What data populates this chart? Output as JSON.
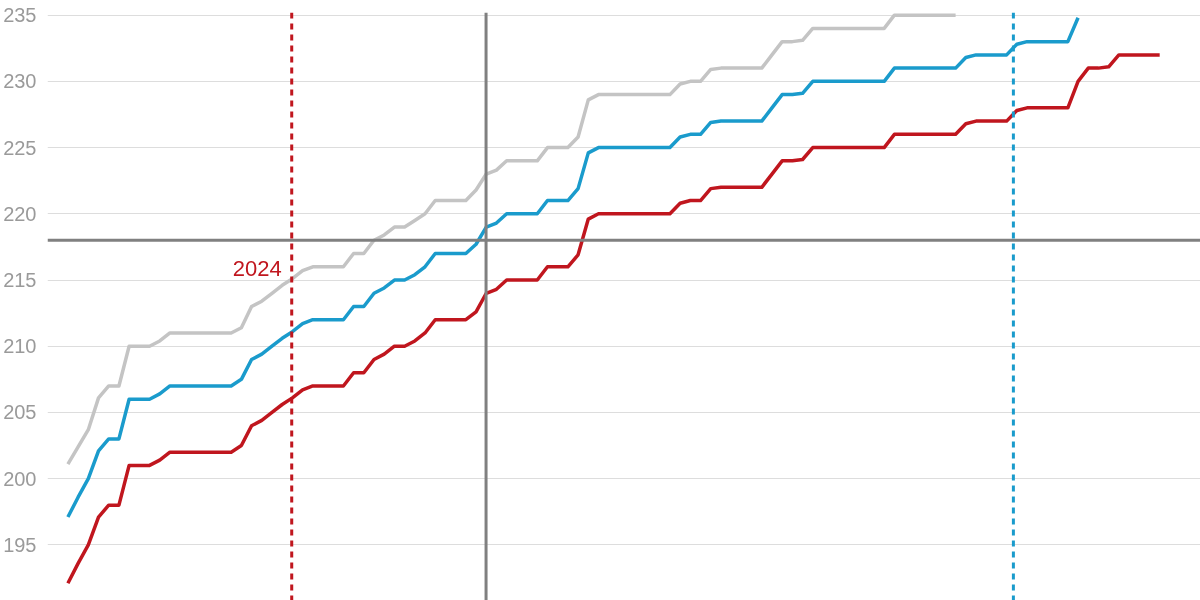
{
  "chart_data": {
    "type": "line",
    "categories": [
      null,
      null,
      null,
      null,
      null,
      null,
      null,
      null,
      null,
      null,
      null,
      null,
      null,
      null,
      null,
      null,
      null,
      null,
      null,
      null,
      null,
      null,
      null,
      null,
      null,
      null,
      null,
      null,
      null,
      null,
      null,
      null,
      null,
      null,
      null,
      null,
      null,
      null,
      null,
      null,
      null,
      null,
      null,
      null,
      null,
      null,
      null,
      null,
      null,
      null,
      null,
      null,
      null,
      null,
      null,
      null,
      null,
      null,
      null,
      null,
      null,
      null,
      null,
      null,
      null,
      null,
      null,
      null,
      null,
      null,
      null,
      null,
      null,
      null,
      null,
      null,
      null,
      null,
      null,
      null,
      null,
      null,
      null,
      null,
      null,
      null,
      null,
      null,
      null,
      null,
      null,
      null,
      null,
      null,
      null,
      null,
      null,
      null,
      null,
      null,
      null,
      null,
      null,
      null,
      null,
      null,
      null,
      null
    ],
    "ylim": [
      190.8,
      235.2
    ],
    "yticks": [
      195,
      200,
      205,
      210,
      215,
      220,
      225,
      230,
      235
    ],
    "tick_labels": "y",
    "grid": "y",
    "line_style": "solid",
    "series": [
      {
        "color": "#c4c4c4",
        "values": [
          201.1,
          202.4,
          203.7,
          206.1,
          207,
          207,
          210,
          210,
          210,
          210.4,
          211,
          211,
          211,
          211,
          211,
          211,
          211,
          211.4,
          213,
          213.4,
          214,
          214.6,
          215.1,
          215.7,
          216,
          216,
          216,
          216,
          217,
          217,
          218,
          218.4,
          219,
          219,
          219.5,
          220,
          221,
          221,
          221,
          221,
          221.8,
          223,
          223.3,
          224,
          224,
          224,
          224,
          225,
          225,
          225,
          225.8,
          228.6,
          229,
          229,
          229,
          229,
          229,
          229,
          229,
          229,
          229.8,
          230,
          230,
          230.9,
          231,
          231,
          231,
          231,
          231,
          232,
          233,
          233,
          233.1,
          234,
          234,
          234,
          234,
          234,
          234,
          234,
          234,
          235,
          235,
          235,
          235,
          235,
          235,
          235,
          null,
          null,
          null,
          null,
          null,
          null,
          null,
          null,
          null,
          null,
          null,
          null,
          null,
          null,
          null,
          null,
          null,
          null,
          null,
          null
        ]
      },
      {
        "color": "#1a9bcc",
        "values": [
          197.1,
          198.6,
          200,
          202.1,
          203,
          203,
          206,
          206,
          206,
          206.4,
          207,
          207,
          207,
          207,
          207,
          207,
          207,
          207.5,
          209,
          209.4,
          210,
          210.6,
          211.1,
          211.7,
          212,
          212,
          212,
          212,
          213,
          213,
          214,
          214.4,
          215,
          215,
          215.4,
          216,
          217,
          217,
          217,
          217,
          217.7,
          219,
          219.3,
          220,
          220,
          220,
          220,
          221,
          221,
          221,
          221.9,
          224.6,
          225,
          225,
          225,
          225,
          225,
          225,
          225,
          225,
          225.8,
          226,
          226,
          226.9,
          227,
          227,
          227,
          227,
          227,
          228,
          229,
          229,
          229.1,
          230,
          230,
          230,
          230,
          230,
          230,
          230,
          230,
          231,
          231,
          231,
          231,
          231,
          231,
          231,
          231.8,
          232,
          232,
          232,
          232,
          232.8,
          233,
          233,
          233,
          233,
          233,
          234.8,
          null,
          null,
          null,
          null,
          null,
          null,
          null,
          null
        ]
      },
      {
        "color": "#c0161e",
        "values": [
          192.1,
          193.6,
          195,
          197.1,
          198,
          198,
          201,
          201,
          201,
          201.4,
          202,
          202,
          202,
          202,
          202,
          202,
          202,
          202.5,
          204,
          204.4,
          205,
          205.6,
          206.1,
          206.7,
          207,
          207,
          207,
          207,
          208,
          208,
          209,
          209.4,
          210,
          210,
          210.4,
          211,
          212,
          212,
          212,
          212,
          212.6,
          214,
          214.3,
          215,
          215,
          215,
          215,
          216,
          216,
          216,
          216.9,
          219.6,
          220,
          220,
          220,
          220,
          220,
          220,
          220,
          220,
          220.8,
          221,
          221,
          221.9,
          222,
          222,
          222,
          222,
          222,
          223,
          224,
          224,
          224.1,
          225,
          225,
          225,
          225,
          225,
          225,
          225,
          225,
          226,
          226,
          226,
          226,
          226,
          226,
          226,
          226.8,
          227,
          227,
          227,
          227,
          227.8,
          228,
          228,
          228,
          228,
          228,
          230,
          231,
          231,
          231.1,
          232,
          232,
          232,
          232,
          232
        ]
      }
    ],
    "ref_lines": [
      {
        "axis": "y",
        "value": 218,
        "color": "#808080",
        "line_style": "solid"
      }
    ],
    "annotations": [
      "2024"
    ]
  }
}
